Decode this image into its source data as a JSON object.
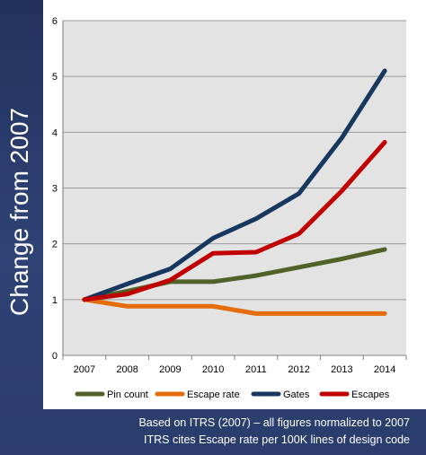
{
  "chart_data": {
    "type": "line",
    "title": "",
    "xlabel": "",
    "ylabel": "Change from 2007",
    "categories": [
      "2007",
      "2008",
      "2009",
      "2010",
      "2011",
      "2012",
      "2013",
      "2014"
    ],
    "ylim": [
      0,
      6
    ],
    "yticks": [
      0,
      1,
      2,
      3,
      4,
      5,
      6
    ],
    "grid": true,
    "legend": "bottom",
    "series": [
      {
        "name": "Pin count",
        "color": "#4f6228",
        "values": [
          1.0,
          1.15,
          1.32,
          1.32,
          1.43,
          1.58,
          1.73,
          1.9
        ]
      },
      {
        "name": "Escape rate",
        "color": "#e46c0a",
        "values": [
          1.0,
          0.88,
          0.88,
          0.88,
          0.75,
          0.75,
          0.75,
          0.75
        ]
      },
      {
        "name": "Gates",
        "color": "#17375e",
        "values": [
          1.0,
          1.28,
          1.55,
          2.1,
          2.45,
          2.9,
          3.9,
          5.1
        ]
      },
      {
        "name": "Escapes",
        "color": "#c00000",
        "values": [
          1.0,
          1.1,
          1.35,
          1.83,
          1.85,
          2.18,
          2.95,
          3.82
        ]
      }
    ]
  },
  "footnote": {
    "line1": "Based on ITRS (2007) – all figures normalized to 2007",
    "line2": "ITRS cites Escape rate per 100K lines of design code"
  }
}
